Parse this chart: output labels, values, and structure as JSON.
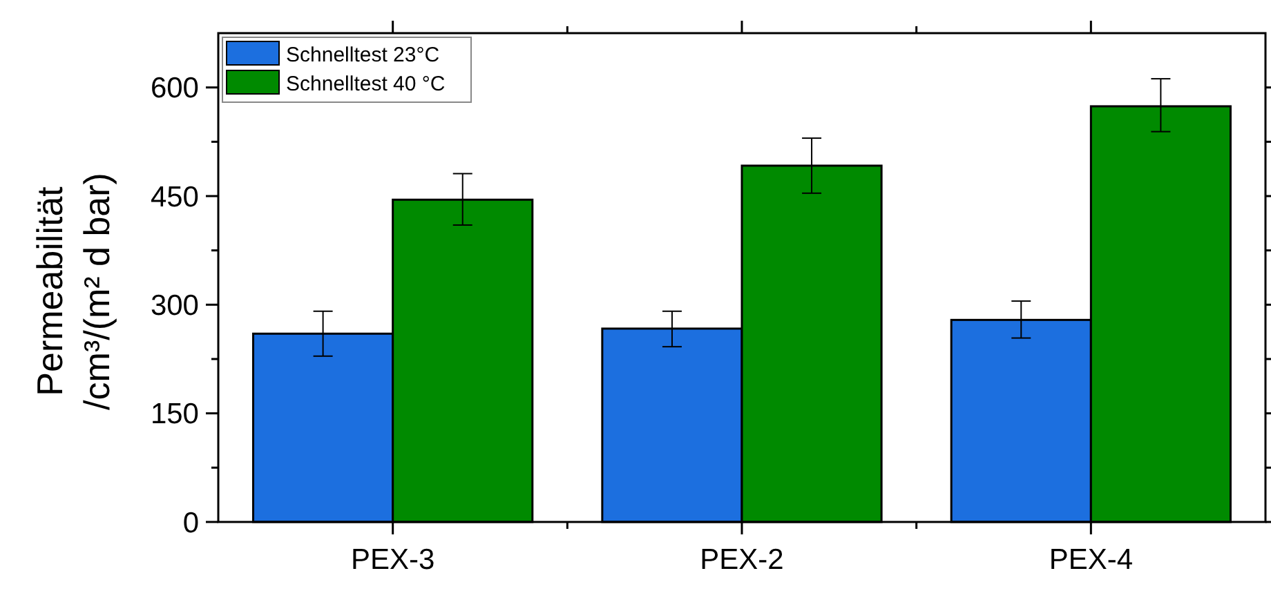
{
  "chart_data": {
    "type": "bar",
    "ylabel": "Permeabilität\n/cm³/(m² d bar)",
    "categories": [
      "PEX-3",
      "PEX-2",
      "PEX-4"
    ],
    "series": [
      {
        "name": "Schnelltest 23°C",
        "color": "#1c6fdf",
        "values": [
          260,
          267,
          279
        ],
        "errors": [
          [
            229,
            291
          ],
          [
            242,
            291
          ],
          [
            254,
            305
          ]
        ]
      },
      {
        "name": "Schnelltest 40 °C",
        "color": "#008a00",
        "values": [
          445,
          492,
          574
        ],
        "errors": [
          [
            410,
            481
          ],
          [
            454,
            530
          ],
          [
            539,
            612
          ]
        ]
      }
    ],
    "ylim": [
      0,
      675
    ],
    "yticks": [
      0,
      {
        "value": 75,
        "label": null
      },
      150,
      {
        "value": 225,
        "label": null
      },
      300,
      {
        "value": 375,
        "label": null
      },
      450,
      {
        "value": 525,
        "label": null
      },
      600
    ],
    "legend": "top left",
    "grid": false
  }
}
